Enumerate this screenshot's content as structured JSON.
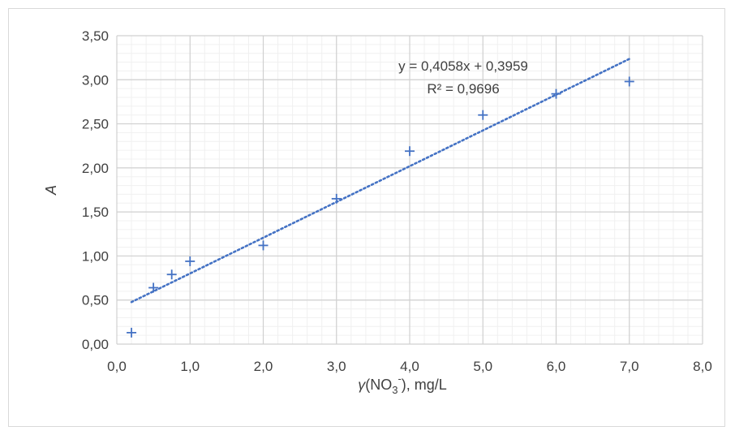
{
  "chart_data": {
    "type": "scatter",
    "title": "",
    "xlabel": {
      "main": "γ",
      "pre": "(NO",
      "sub": "3",
      "sup": "-",
      "post": "), mg/L"
    },
    "ylabel": "A",
    "xlim": [
      0,
      8
    ],
    "ylim": [
      0,
      3.5
    ],
    "xticks": [
      "0,0",
      "1,0",
      "2,0",
      "3,0",
      "4,0",
      "5,0",
      "6,0",
      "7,0",
      "8,0"
    ],
    "yticks": [
      "0,00",
      "0,50",
      "1,00",
      "1,50",
      "2,00",
      "2,50",
      "3,00",
      "3,50"
    ],
    "grid": true,
    "minor_grid": true,
    "marker": "plus",
    "series": [
      {
        "x": [
          0.2,
          0.5,
          0.75,
          1.0,
          2.0,
          3.0,
          4.0,
          5.0,
          6.0,
          7.0
        ],
        "y": [
          0.13,
          0.64,
          0.79,
          0.94,
          1.12,
          1.65,
          2.19,
          2.6,
          2.84,
          2.98
        ],
        "color": "#4472c4"
      }
    ],
    "trendline": {
      "type": "linear",
      "slope": 0.4058,
      "intercept": 0.3959,
      "x_range": [
        0.2,
        7.0
      ],
      "style": "dotted",
      "color": "#4472c4",
      "equation_label": "y = 0,4058x + 0,3959",
      "r2_label": "R² = 0,9696"
    }
  }
}
